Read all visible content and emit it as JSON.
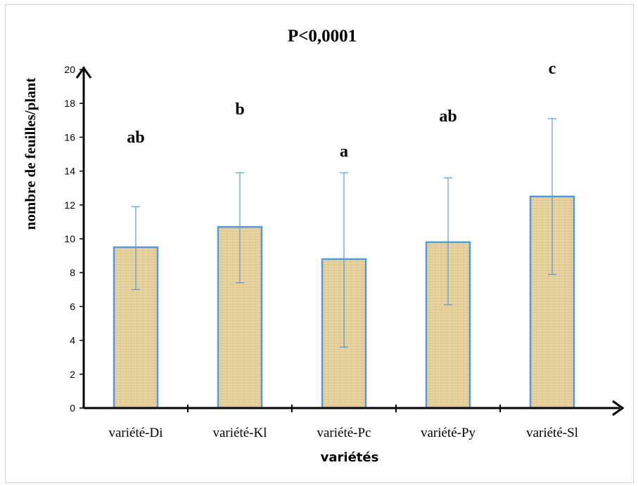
{
  "chart_data": {
    "type": "bar",
    "title": "P<0,0001",
    "xlabel": "variétés",
    "ylabel": "nombre de feuilles/plant",
    "categories": [
      "variété-Di",
      "variété-Kl",
      "variété-Pc",
      "variété-Py",
      "variété-Sl"
    ],
    "values": [
      9.5,
      10.7,
      8.8,
      9.8,
      12.5
    ],
    "error_low": [
      7.0,
      7.4,
      3.6,
      6.1,
      7.9
    ],
    "error_high": [
      11.9,
      13.9,
      13.9,
      13.6,
      17.1
    ],
    "group_letters": [
      "ab",
      "b",
      "a",
      "ab",
      "c"
    ],
    "ylim": [
      0,
      20
    ],
    "yticks": [
      "0",
      "2",
      "4",
      "6",
      "8",
      "10",
      "12",
      "14",
      "16",
      "18",
      "20"
    ],
    "grid": false,
    "legend": "none",
    "colors": {
      "bar_fill": "#e6cf9a",
      "bar_fill_dark": "#d4b97e",
      "bar_border": "#5b9bd5",
      "error_bar": "#5b9bd5",
      "axis": "#000000"
    }
  }
}
